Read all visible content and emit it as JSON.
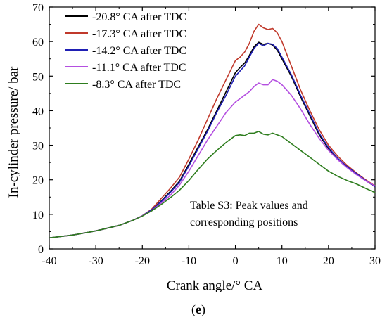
{
  "chart_data": {
    "type": "line",
    "title": "",
    "xlabel": "Crank angle/° CA",
    "ylabel": "In-cylinder pressure/ bar",
    "xlim": [
      -40,
      30
    ],
    "ylim": [
      0,
      70
    ],
    "xticks": [
      "-40",
      "-30",
      "-20",
      "-10",
      "0",
      "10",
      "20",
      "30"
    ],
    "yticks": [
      "0",
      "10",
      "20",
      "30",
      "40",
      "50",
      "60",
      "70"
    ],
    "grid": false,
    "legend_position": "top-left",
    "annotation": [
      "Table S3: Peak values and",
      "corresponding positions"
    ],
    "caption": {
      "open": "(",
      "letter": "e",
      "close": ")"
    },
    "series": [
      {
        "name": "-20.8° CA after TDC",
        "color": "#000000",
        "x": [
          -40,
          -35,
          -30,
          -25,
          -22,
          -20,
          -18,
          -16,
          -14,
          -12,
          -10,
          -8,
          -6,
          -4,
          -2,
          0,
          1,
          2,
          3,
          4,
          5,
          6,
          7,
          8,
          9,
          10,
          12,
          14,
          16,
          18,
          20,
          22,
          24,
          26,
          28,
          30
        ],
        "y": [
          3.2,
          4.0,
          5.2,
          6.8,
          8.3,
          9.6,
          11.3,
          13.8,
          16.6,
          19.6,
          24.5,
          29.5,
          34.5,
          40.0,
          45.5,
          51.0,
          52.5,
          53.8,
          56.0,
          58.5,
          59.8,
          59.2,
          59.5,
          59.0,
          57.5,
          55.0,
          50.0,
          44.0,
          38.5,
          33.0,
          29.0,
          26.0,
          23.8,
          21.8,
          19.8,
          18.0
        ]
      },
      {
        "name": "-17.3° CA after TDC",
        "color": "#c0392b",
        "x": [
          -40,
          -35,
          -30,
          -25,
          -22,
          -20,
          -18,
          -16,
          -14,
          -12,
          -10,
          -8,
          -6,
          -4,
          -2,
          0,
          1,
          2,
          3,
          4,
          5,
          6,
          7,
          8,
          9,
          10,
          12,
          14,
          16,
          18,
          20,
          22,
          24,
          26,
          28,
          30
        ],
        "y": [
          3.2,
          4.0,
          5.2,
          6.8,
          8.3,
          9.6,
          11.5,
          14.5,
          17.5,
          20.8,
          26.0,
          31.5,
          37.5,
          43.5,
          49.0,
          54.5,
          55.5,
          57.0,
          59.5,
          63.0,
          65.0,
          64.0,
          63.5,
          63.8,
          62.5,
          60.0,
          53.0,
          46.0,
          40.0,
          34.5,
          30.0,
          26.8,
          24.2,
          22.0,
          20.0,
          18.2
        ]
      },
      {
        "name": "-14.2° CA after TDC",
        "color": "#1f1fb4",
        "x": [
          -40,
          -35,
          -30,
          -25,
          -22,
          -20,
          -18,
          -16,
          -14,
          -12,
          -10,
          -8,
          -6,
          -4,
          -2,
          0,
          1,
          2,
          3,
          4,
          5,
          6,
          7,
          8,
          9,
          10,
          12,
          14,
          16,
          18,
          20,
          22,
          24,
          26,
          28,
          30
        ],
        "y": [
          3.2,
          4.0,
          5.2,
          6.8,
          8.3,
          9.6,
          11.3,
          13.6,
          16.3,
          19.3,
          24.0,
          29.0,
          34.0,
          39.5,
          44.5,
          50.0,
          51.5,
          53.0,
          55.5,
          58.0,
          59.5,
          58.8,
          59.5,
          59.2,
          58.0,
          55.5,
          50.5,
          44.5,
          39.0,
          33.5,
          29.3,
          26.2,
          23.8,
          21.8,
          19.8,
          18.0
        ]
      },
      {
        "name": "-11.1° CA after TDC",
        "color": "#b44fe0",
        "x": [
          -40,
          -35,
          -30,
          -25,
          -22,
          -20,
          -18,
          -16,
          -14,
          -12,
          -10,
          -8,
          -6,
          -4,
          -2,
          0,
          1,
          2,
          3,
          4,
          5,
          6,
          7,
          8,
          9,
          10,
          12,
          14,
          16,
          18,
          20,
          22,
          24,
          26,
          28,
          30
        ],
        "y": [
          3.2,
          4.0,
          5.2,
          6.8,
          8.3,
          9.6,
          11.0,
          13.2,
          15.5,
          18.5,
          22.5,
          27.0,
          31.5,
          35.5,
          39.5,
          42.5,
          43.5,
          44.5,
          45.5,
          47.0,
          48.0,
          47.5,
          47.5,
          49.0,
          48.5,
          47.5,
          44.5,
          40.5,
          36.0,
          32.0,
          28.5,
          25.8,
          23.5,
          21.5,
          19.7,
          18.2
        ]
      },
      {
        "name": "-8.3° CA after TDC",
        "color": "#2e7d1e",
        "x": [
          -40,
          -35,
          -30,
          -25,
          -22,
          -20,
          -18,
          -16,
          -14,
          -12,
          -10,
          -8,
          -6,
          -4,
          -2,
          0,
          1,
          2,
          3,
          4,
          5,
          6,
          7,
          8,
          9,
          10,
          12,
          14,
          16,
          18,
          20,
          22,
          24,
          26,
          28,
          30
        ],
        "y": [
          3.2,
          4.0,
          5.2,
          6.8,
          8.3,
          9.5,
          11.0,
          12.8,
          14.8,
          17.0,
          19.8,
          23.0,
          26.0,
          28.5,
          30.8,
          32.8,
          33.0,
          32.8,
          33.5,
          33.5,
          34.0,
          33.2,
          33.0,
          33.5,
          33.0,
          32.5,
          30.5,
          28.5,
          26.5,
          24.5,
          22.5,
          21.0,
          19.8,
          18.8,
          17.5,
          16.3
        ]
      }
    ]
  }
}
